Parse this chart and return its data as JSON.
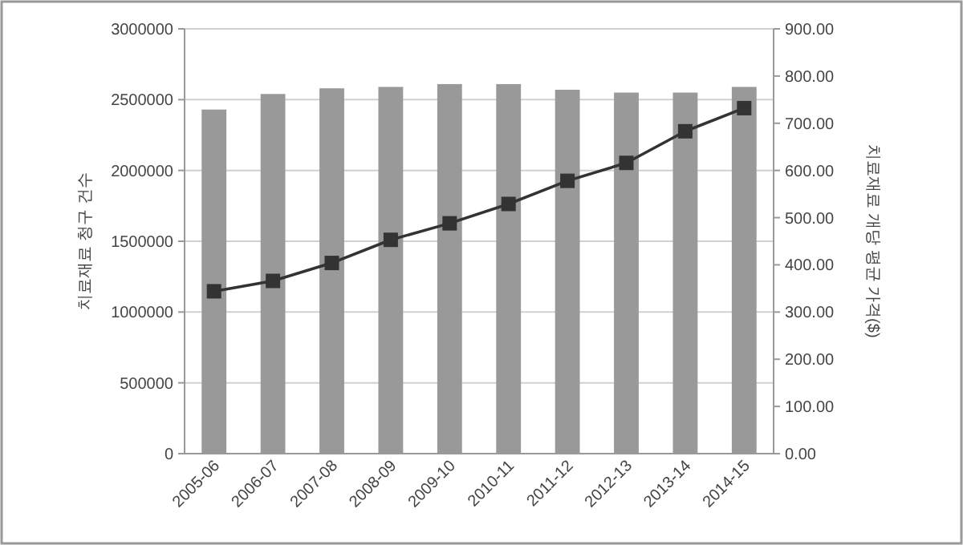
{
  "chart_data": {
    "type": "bar",
    "ylabel": "치료재료 청구 건수",
    "y2label": "치료재료 개당 평균 가격($)",
    "categories": [
      "2005-06",
      "2006-07",
      "2007-08",
      "2008-09",
      "2009-10",
      "2010-11",
      "2011-12",
      "2012-13",
      "2013-14",
      "2014-15"
    ],
    "series": [
      {
        "color": "#999999",
        "values": [
          2430000,
          2540000,
          2580000,
          2590000,
          2610000,
          2610000,
          2570000,
          2550000,
          2550000,
          2590000
        ]
      },
      {
        "type": "line",
        "axis": "y2",
        "color": "#333333",
        "values": [
          344,
          366,
          404,
          453,
          488,
          529,
          578,
          616,
          683,
          732
        ]
      }
    ],
    "ylim": [
      0,
      3000000
    ],
    "yticks": [
      0,
      500000,
      1000000,
      1500000,
      2000000,
      2500000,
      3000000
    ],
    "y2lim": [
      0,
      900
    ],
    "y2ticks": [
      {
        "value": 0,
        "label": "0.00"
      },
      {
        "value": 100,
        "label": "100.00"
      },
      {
        "value": 200,
        "label": "200.00"
      },
      {
        "value": 300,
        "label": "300.00"
      },
      {
        "value": 400,
        "label": "400.00"
      },
      {
        "value": 500,
        "label": "500.00"
      },
      {
        "value": 600,
        "label": "600.00"
      },
      {
        "value": 700,
        "label": "700.00"
      },
      {
        "value": 800,
        "label": "800.00"
      },
      {
        "value": 900,
        "label": "900.00"
      }
    ],
    "grid": "y",
    "marker": "square",
    "line_style": "solid"
  }
}
